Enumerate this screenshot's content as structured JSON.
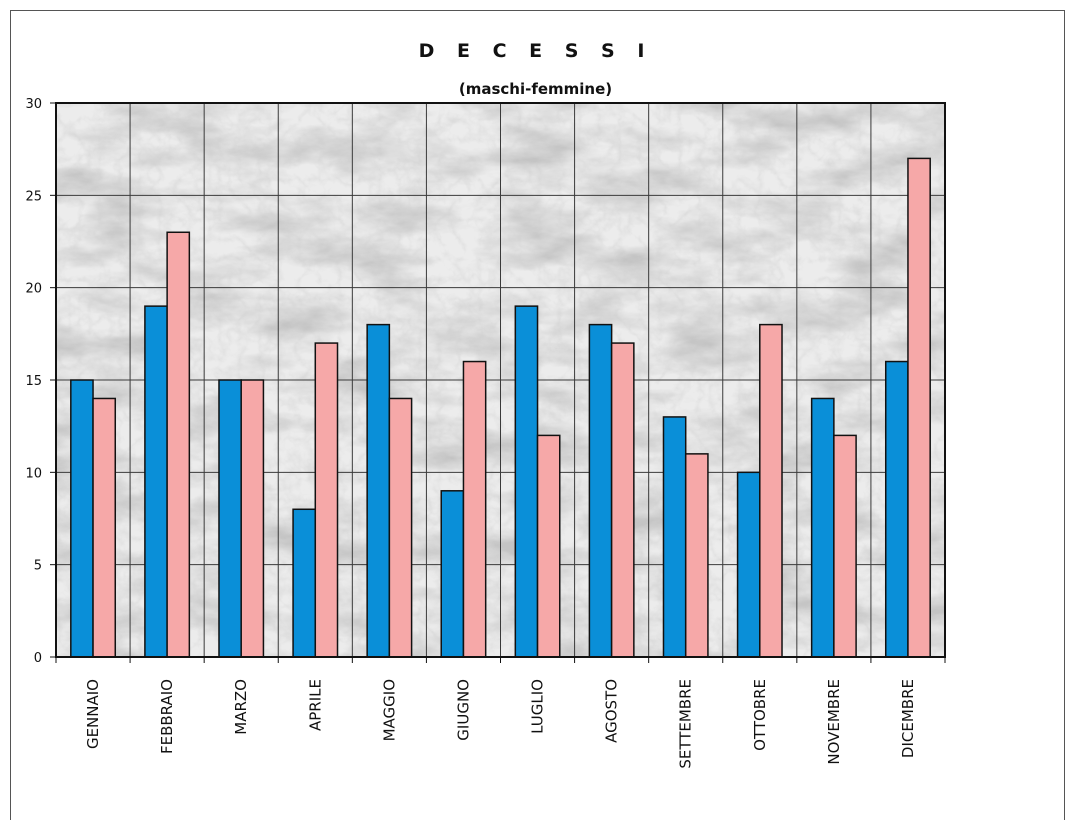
{
  "chart_data": {
    "type": "bar",
    "title": "D E C E S S I",
    "subtitle": "(maschi-femmine)",
    "categories": [
      "GENNAIO",
      "FEBBRAIO",
      "MARZO",
      "APRILE",
      "MAGGIO",
      "GIUGNO",
      "LUGLIO",
      "AGOSTO",
      "SETTEMBRE",
      "OTTOBRE",
      "NOVEMBRE",
      "DICEMBRE"
    ],
    "series": [
      {
        "values": [
          15,
          19,
          15,
          8,
          18,
          9,
          19,
          18,
          13,
          10,
          14,
          16
        ],
        "color": "#0a8fd8"
      },
      {
        "values": [
          14,
          23,
          15,
          17,
          14,
          16,
          12,
          17,
          11,
          18,
          12,
          27
        ],
        "color": "#f6a8a8"
      }
    ],
    "ylim": [
      0,
      30
    ],
    "yticks": [
      0,
      5,
      10,
      15,
      20,
      25,
      30
    ],
    "grid": true,
    "background": "marble texture",
    "xlabel": "",
    "ylabel": ""
  }
}
